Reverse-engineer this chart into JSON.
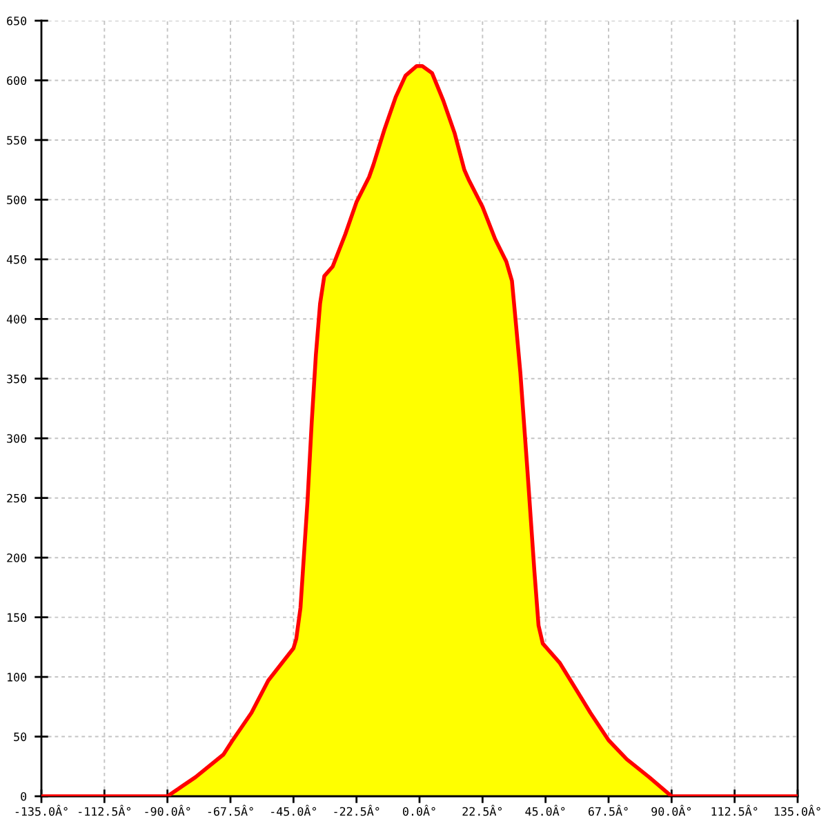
{
  "chart_data": {
    "type": "area",
    "x": [
      -135,
      -90,
      -85,
      -80,
      -70,
      -67,
      -60,
      -54,
      -49,
      -45,
      -44,
      -42.5,
      -40,
      -38.5,
      -37,
      -35.5,
      -34,
      -31,
      -26.5,
      -22.5,
      -18,
      -16.5,
      -12.5,
      -8.5,
      -5,
      -1,
      1,
      4.5,
      8.5,
      12.5,
      16,
      17.5,
      22.5,
      27,
      31,
      33,
      34.5,
      36,
      38.5,
      41,
      42.5,
      44,
      50,
      55,
      61,
      67.5,
      74,
      82,
      89,
      90,
      135
    ],
    "series": [
      {
        "color": "#ffff00",
        "x": [
          -90,
          -85,
          -80,
          -70,
          -67,
          -60,
          -54,
          -49,
          -45,
          -44,
          -42.5,
          -40,
          -38.5,
          -37,
          -35.5,
          -34,
          -31,
          -26.5,
          -22.5,
          -18,
          -16.5,
          -12.5,
          -8.5,
          -5,
          -1,
          1,
          4.5,
          8.5,
          12.5,
          16,
          17.5,
          22.5,
          27,
          31,
          33,
          34.5,
          36,
          38.5,
          41,
          42.5,
          44,
          50,
          55,
          61,
          67.5,
          74,
          82,
          89,
          90
        ],
        "values": [
          0,
          8,
          16,
          35,
          46,
          70,
          97,
          112,
          124,
          132,
          158,
          247,
          313,
          370,
          413,
          436,
          444,
          471,
          498,
          519,
          529,
          559,
          586,
          604,
          612,
          612,
          606,
          583,
          556,
          525,
          517,
          494,
          467,
          448,
          432,
          394,
          355,
          274,
          189,
          143,
          128,
          112,
          93,
          70,
          47,
          31,
          16,
          2,
          0
        ]
      },
      {
        "type": "line",
        "color": "#ff0000",
        "values": [
          0,
          0,
          8,
          16,
          35,
          46,
          70,
          97,
          112,
          124,
          132,
          158,
          247,
          313,
          370,
          413,
          436,
          444,
          471,
          498,
          519,
          529,
          559,
          586,
          604,
          612,
          612,
          606,
          583,
          556,
          525,
          517,
          494,
          467,
          448,
          432,
          394,
          355,
          274,
          189,
          143,
          128,
          112,
          93,
          70,
          47,
          31,
          16,
          2,
          0,
          0
        ]
      }
    ],
    "xlim": [
      -135,
      135
    ],
    "xticks": [
      {
        "value": -135,
        "label": "-135.0Â°"
      },
      {
        "value": -112.5,
        "label": "-112.5Â°"
      },
      {
        "value": -90,
        "label": "-90.0Â°"
      },
      {
        "value": -67.5,
        "label": "-67.5Â°"
      },
      {
        "value": -45,
        "label": "-45.0Â°"
      },
      {
        "value": -22.5,
        "label": "-22.5Â°"
      },
      {
        "value": 0,
        "label": "0.0Â°"
      },
      {
        "value": 22.5,
        "label": "22.5Â°"
      },
      {
        "value": 45,
        "label": "45.0Â°"
      },
      {
        "value": 67.5,
        "label": "67.5Â°"
      },
      {
        "value": 90,
        "label": "90.0Â°"
      },
      {
        "value": 112.5,
        "label": "112.5Â°"
      },
      {
        "value": 135,
        "label": "135.0Â°"
      }
    ],
    "ylim": [
      0,
      650
    ],
    "yticks": [
      0,
      50,
      100,
      150,
      200,
      250,
      300,
      350,
      400,
      450,
      500,
      550,
      600,
      650
    ],
    "grid": true
  }
}
